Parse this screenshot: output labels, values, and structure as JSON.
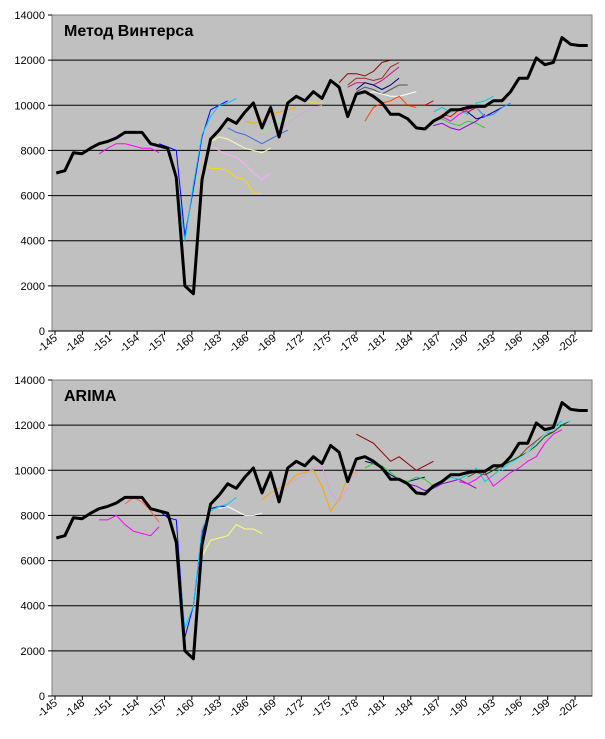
{
  "chart_data": [
    {
      "type": "line",
      "title": "Метод Винтерса",
      "ylim": [
        0,
        14000
      ],
      "yticks": [
        "0",
        "2000",
        "4000",
        "6000",
        "8000",
        "10000",
        "12000",
        "14000"
      ],
      "xticks": [
        "145",
        "148",
        "151",
        "154",
        "157",
        "160",
        "183",
        "186",
        "169",
        "172",
        "175",
        "178",
        "181",
        "184",
        "187",
        "190",
        "193",
        "196",
        "199",
        "202"
      ],
      "grid": true,
      "actual": [
        7000,
        7100,
        7900,
        7850,
        8100,
        8300,
        8400,
        8550,
        8800,
        8800,
        8800,
        8300,
        8200,
        8100,
        6800,
        2000,
        1650,
        6700,
        8500,
        8900,
        9400,
        9200,
        9700,
        10100,
        9000,
        9900,
        8600,
        10100,
        10400,
        10200,
        10600,
        10300,
        11100,
        10800,
        9500,
        10500,
        10600,
        10400,
        10100,
        9600,
        9600,
        9400,
        9000,
        8950,
        9300,
        9500,
        9800,
        9800,
        9900,
        9950,
        9950,
        10200,
        10200,
        10600,
        11200,
        11200,
        12100,
        11800,
        11900,
        13000,
        12700,
        12650,
        12650
      ],
      "forecasts": [
        {
          "color": "#ff00ff",
          "start": 5,
          "values": [
            7850,
            8100,
            8300,
            8300,
            8200,
            8100,
            8100,
            7900
          ]
        },
        {
          "color": "#0000ff",
          "start": 12,
          "values": [
            8300,
            8150,
            8000,
            4200,
            6300,
            8600,
            9800,
            10000,
            10200
          ]
        },
        {
          "color": "#00c8ff",
          "start": 14,
          "values": [
            6800,
            4000,
            6500,
            8700,
            9500,
            10000,
            10100,
            10300
          ]
        },
        {
          "color": "#ffd700",
          "start": 17,
          "values": [
            7500,
            7200,
            7200,
            7100,
            6800,
            6700,
            6100,
            6100
          ]
        },
        {
          "color": "#ffaaff",
          "start": 18,
          "values": [
            8200,
            8000,
            7800,
            7700,
            7400,
            7000,
            6700,
            7000
          ]
        },
        {
          "color": "#ffffb0",
          "start": 18,
          "values": [
            8400,
            8600,
            8500,
            8300,
            8100,
            8000,
            7900,
            8100
          ]
        },
        {
          "color": "#4169e1",
          "start": 20,
          "values": [
            9000,
            8800,
            8700,
            8500,
            8300,
            8500,
            8700,
            8900
          ]
        },
        {
          "color": "#ffa500",
          "start": 22,
          "values": [
            9300,
            9200,
            9300,
            9600,
            9700,
            9800,
            9900
          ]
        },
        {
          "color": "#90ee90",
          "start": 24,
          "values": [
            8800,
            9100,
            9300,
            9400,
            9500
          ]
        },
        {
          "color": "#dda0dd",
          "start": 26,
          "values": [
            8800,
            9200,
            9500,
            9700,
            9900,
            10000
          ]
        },
        {
          "color": "#ffdd00",
          "start": 28,
          "values": [
            10300,
            10200,
            10100,
            10100
          ]
        },
        {
          "color": "#8b0000",
          "start": 33,
          "values": [
            11000,
            11400,
            11400,
            11300,
            11500,
            11900,
            12000
          ]
        },
        {
          "color": "#a52a2a",
          "start": 34,
          "values": [
            10900,
            11200,
            11200,
            11100,
            11200,
            11700,
            11900
          ]
        },
        {
          "color": "#c71585",
          "start": 34,
          "values": [
            10800,
            11000,
            11000,
            10900,
            11100,
            11400,
            11700
          ]
        },
        {
          "color": "#000080",
          "start": 35,
          "values": [
            10700,
            11000,
            10900,
            10700,
            10900,
            11200
          ]
        },
        {
          "color": "#555555",
          "start": 35,
          "values": [
            10600,
            10800,
            10700,
            10500,
            10700,
            10900,
            10900
          ]
        },
        {
          "color": "#ffffff",
          "start": 36,
          "values": [
            10500,
            10600,
            10500,
            10400,
            10400,
            10500,
            10600
          ]
        },
        {
          "color": "#ff4500",
          "start": 36,
          "values": [
            9300,
            9900,
            10100,
            10200,
            10400,
            10000,
            9900
          ]
        },
        {
          "color": "#cc0000",
          "start": 38,
          "values": [
            10000,
            10000,
            10000,
            10000,
            10000,
            10000,
            10200
          ]
        },
        {
          "color": "#00ced1",
          "start": 44,
          "values": [
            9700,
            9900,
            9700,
            9800,
            9600,
            10100,
            10200,
            10400
          ]
        },
        {
          "color": "#ff0000",
          "start": 45,
          "values": [
            9600,
            9500,
            9800,
            9700,
            9900,
            10000
          ]
        },
        {
          "color": "#ff00ff",
          "start": 45,
          "values": [
            9500,
            9300,
            9600,
            9800,
            10000
          ]
        },
        {
          "color": "#32cd32",
          "start": 44,
          "values": [
            9300,
            9400,
            9200,
            9100,
            9300,
            9200,
            9000
          ]
        },
        {
          "color": "#9400d3",
          "start": 44,
          "values": [
            9100,
            9200,
            9000,
            8900,
            9100,
            9300,
            9600
          ]
        },
        {
          "color": "#00008b",
          "start": 48,
          "values": [
            9700,
            9400,
            9500,
            9700,
            9900
          ]
        },
        {
          "color": "#1e90ff",
          "start": 49,
          "values": [
            9900,
            9500,
            9600,
            9900,
            10100
          ]
        }
      ]
    },
    {
      "type": "line",
      "title": "ARIMA",
      "ylim": [
        0,
        14000
      ],
      "yticks": [
        "0",
        "2000",
        "4000",
        "6000",
        "8000",
        "10000",
        "12000",
        "14000"
      ],
      "xticks": [
        "145",
        "148",
        "151",
        "154",
        "157",
        "160",
        "183",
        "186",
        "169",
        "172",
        "175",
        "178",
        "181",
        "184",
        "187",
        "190",
        "193",
        "196",
        "199",
        "202"
      ],
      "grid": true,
      "actual": [
        7000,
        7100,
        7900,
        7850,
        8100,
        8300,
        8400,
        8550,
        8800,
        8800,
        8800,
        8300,
        8200,
        8100,
        6800,
        2000,
        1650,
        6700,
        8500,
        8900,
        9400,
        9200,
        9700,
        10100,
        9000,
        9900,
        8600,
        10100,
        10400,
        10200,
        10600,
        10300,
        11100,
        10800,
        9500,
        10500,
        10600,
        10400,
        10100,
        9600,
        9600,
        9400,
        9000,
        8950,
        9300,
        9500,
        9800,
        9800,
        9900,
        9950,
        9950,
        10200,
        10200,
        10600,
        11200,
        11200,
        12100,
        11800,
        11900,
        13000,
        12700,
        12650,
        12650
      ],
      "forecasts": [
        {
          "color": "#ff00ff",
          "start": 5,
          "values": [
            7800,
            7800,
            8000,
            7600,
            7300,
            7200,
            7100,
            7500
          ]
        },
        {
          "color": "#0000ff",
          "start": 12,
          "values": [
            8200,
            7900,
            7800,
            2600,
            4000,
            7200,
            8300,
            8400,
            8400
          ]
        },
        {
          "color": "#00c8ff",
          "start": 14,
          "values": [
            7000,
            3000,
            4000,
            7400,
            8200,
            8400,
            8500,
            8800
          ]
        },
        {
          "color": "#ffff66",
          "start": 17,
          "values": [
            6200,
            6900,
            7000,
            7100,
            7600,
            7400,
            7400,
            7200
          ]
        },
        {
          "color": "#ffffff",
          "start": 19,
          "values": [
            8300,
            8400,
            8200,
            8000,
            8000,
            8100
          ]
        },
        {
          "color": "#ff6347",
          "start": 8,
          "values": [
            8500,
            8800,
            8600,
            8200,
            7700
          ]
        },
        {
          "color": "#ffa500",
          "start": 24,
          "values": [
            8700,
            9000,
            9200,
            9400,
            9800,
            9900,
            10000,
            9300,
            8200,
            8700,
            9700,
            9900
          ]
        },
        {
          "color": "#dda0dd",
          "start": 25,
          "values": [
            8800,
            9000,
            9300,
            9600,
            9800,
            10100,
            10200,
            9000,
            8600,
            9200,
            10200
          ]
        },
        {
          "color": "#8b0000",
          "start": 35,
          "values": [
            11600,
            11400,
            11200,
            10800,
            10400,
            10600,
            10300,
            10000,
            10200,
            10400
          ]
        },
        {
          "color": "#000080",
          "start": 36,
          "values": [
            10400,
            10300,
            10100,
            9800,
            9600,
            9500,
            9600,
            9700
          ]
        },
        {
          "color": "#32cd32",
          "start": 36,
          "values": [
            10100,
            10300,
            10200,
            9900,
            9600,
            9500,
            9700,
            9600,
            9300,
            9500
          ]
        },
        {
          "color": "#9400d3",
          "start": 40,
          "values": [
            9600,
            9400,
            9300,
            9100,
            9200,
            9400,
            9500,
            9600,
            9400,
            9200
          ]
        },
        {
          "color": "#00ced1",
          "start": 45,
          "values": [
            9500,
            9700,
            9600,
            9800,
            10100,
            9500,
            9800,
            10100,
            10300,
            10600,
            10800,
            11300,
            11600,
            11900,
            12200
          ]
        },
        {
          "color": "#ff00ff",
          "start": 47,
          "values": [
            9500,
            9400,
            9600,
            9900,
            9300,
            9600,
            9900,
            10100,
            10400,
            10600,
            11200,
            11600,
            11800
          ]
        },
        {
          "color": "#8b4513",
          "start": 48,
          "values": [
            9700,
            9900,
            9800,
            10000,
            10300,
            10400,
            10600,
            11000,
            11300,
            11600,
            11700
          ]
        },
        {
          "color": "#006400",
          "start": 50,
          "values": [
            9800,
            10000,
            10200,
            10400,
            10600,
            10800,
            11100,
            11500,
            11700,
            12000,
            12200
          ]
        },
        {
          "color": "#87cefa",
          "start": 52,
          "values": [
            10000,
            10300,
            10500,
            10800,
            11200,
            11600,
            11800,
            12100,
            12200
          ]
        }
      ]
    }
  ]
}
